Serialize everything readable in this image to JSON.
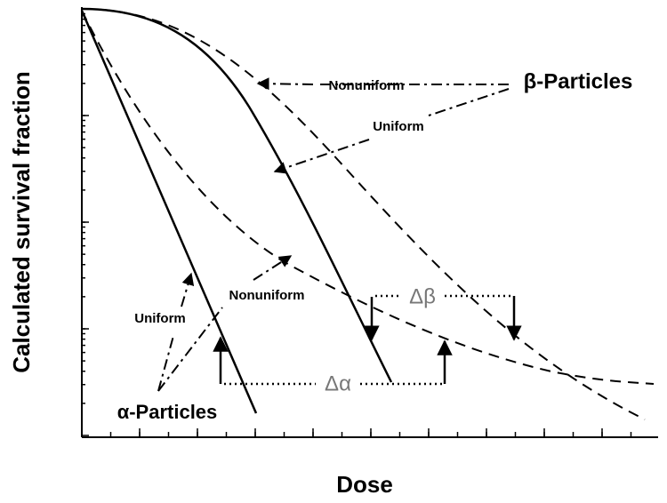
{
  "axes": {
    "x_label": "Dose",
    "y_label": "Calculated survival fraction"
  },
  "annotations": {
    "beta_particles": "β-Particles",
    "beta_nonuniform": "Nonuniform",
    "beta_uniform": "Uniform",
    "alpha_particles": "α-Particles",
    "alpha_uniform": "Uniform",
    "alpha_nonuniform": "Nonuniform",
    "delta_alpha": "Δα",
    "delta_beta": "Δβ"
  }
}
